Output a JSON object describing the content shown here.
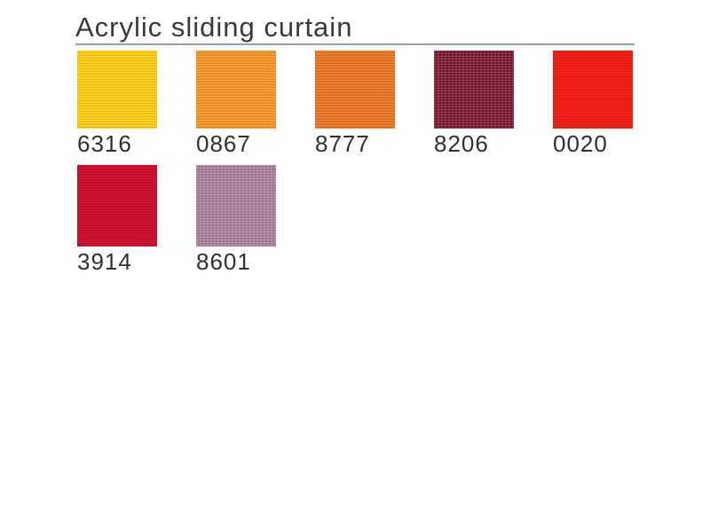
{
  "page": {
    "title": "Acrylic sliding curtain",
    "background": "#ffffff",
    "title_color": "#3a3a3a",
    "rule_color": "#9e9e9e",
    "label_color": "#303030"
  },
  "swatches": [
    {
      "code": "6316",
      "color": "#fccb12",
      "weave": "ribbed"
    },
    {
      "code": "0867",
      "color": "#f69327",
      "weave": "ribbed"
    },
    {
      "code": "8777",
      "color": "#e97320",
      "weave": "ribbed"
    },
    {
      "code": "8206",
      "color": "#7a102b",
      "weave": "speckled"
    },
    {
      "code": "0020",
      "color": "#ee1b13",
      "weave": "subtle"
    },
    {
      "code": "3914",
      "color": "#c90d2e",
      "weave": "subtle"
    },
    {
      "code": "8601",
      "color": "#a67d99",
      "weave": "speckled"
    }
  ]
}
